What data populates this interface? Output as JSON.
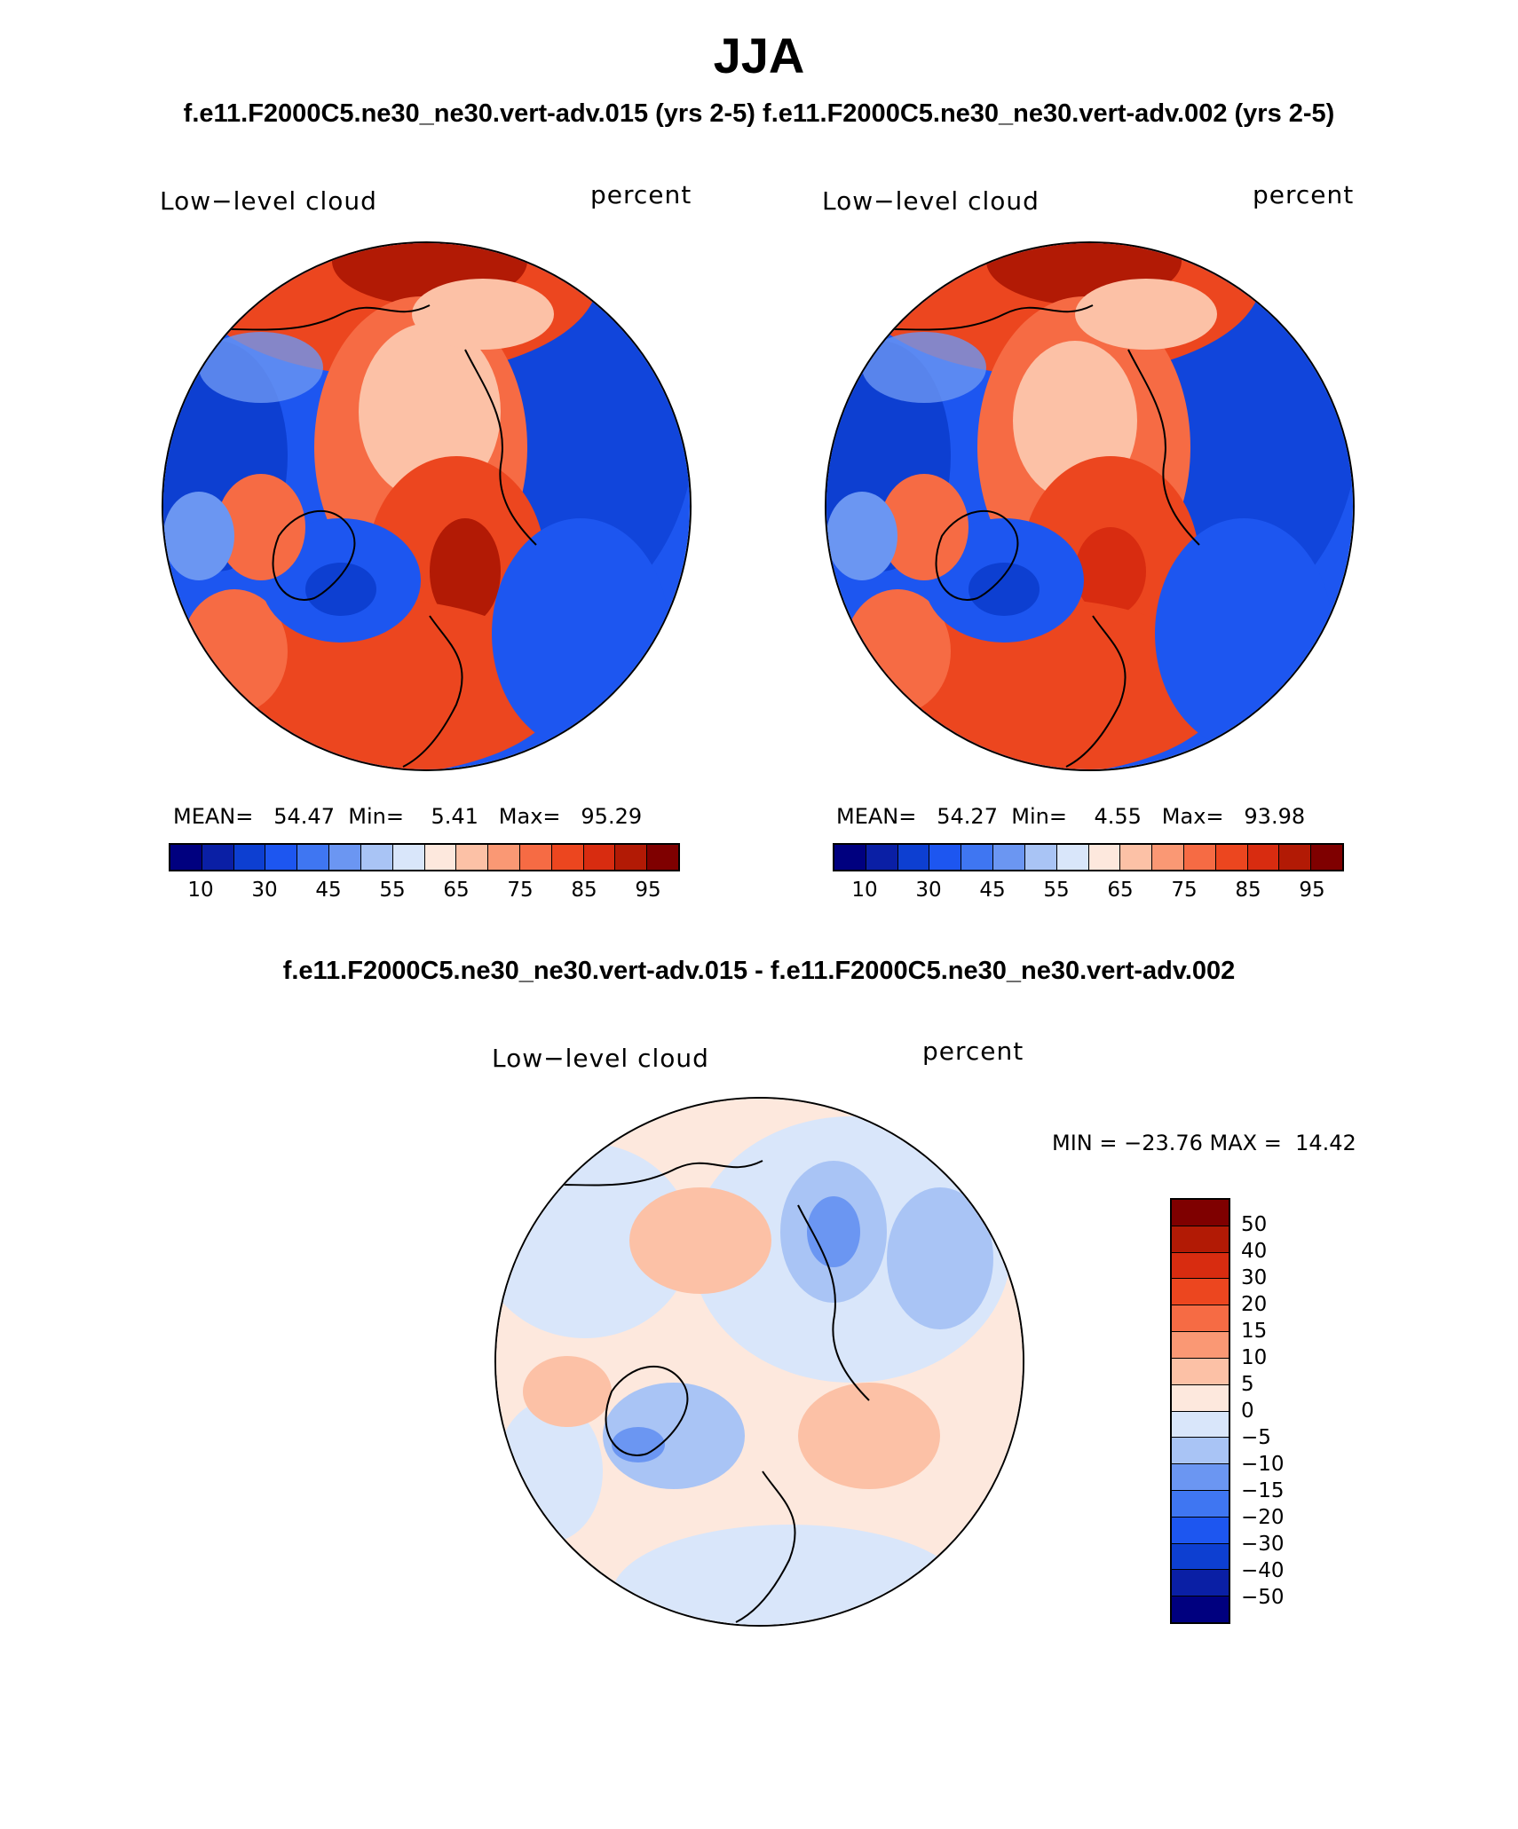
{
  "figure": {
    "season": "JJA",
    "subtitle_left": "f.e11.F2000C5.ne30_ne30.vert-adv.015 (yrs 2-5)",
    "subtitle_right": "f.e11.F2000C5.ne30_ne30.vert-adv.002 (yrs 2-5)",
    "diff_title": "f.e11.F2000C5.ne30_ne30.vert-adv.015 - f.e11.F2000C5.ne30_ne30.vert-adv.002"
  },
  "panels": [
    {
      "variable": "Low−level cloud",
      "units": "percent",
      "mean_label": "MEAN=",
      "mean": "54.47",
      "min_label": "Min=",
      "min": "5.41",
      "max_label": "Max=",
      "max": "95.29"
    },
    {
      "variable": "Low−level cloud",
      "units": "percent",
      "mean_label": "MEAN=",
      "mean": "54.27",
      "min_label": "Min=",
      "min": "4.55",
      "max_label": "Max=",
      "max": "93.98"
    }
  ],
  "diff_panel": {
    "variable": "Low−level cloud",
    "units": "percent",
    "minmax_text": "MIN = −23.76 MAX =  14.42"
  },
  "colorbar_main": {
    "colors": [
      "#00007f",
      "#0a1fa5",
      "#0d3fd1",
      "#1d56f0",
      "#3f76f2",
      "#6b96f2",
      "#a9c4f5",
      "#d9e6fa",
      "#fde8dd",
      "#fcc1a6",
      "#fa9874",
      "#f66b44",
      "#ec461f",
      "#d82c10",
      "#b21a05",
      "#7f0000"
    ],
    "ticks": [
      "10",
      "30",
      "45",
      "55",
      "65",
      "75",
      "85",
      "95"
    ]
  },
  "colorbar_diff": {
    "colors": [
      "#7f0000",
      "#b21a05",
      "#d82c10",
      "#ec461f",
      "#f66b44",
      "#fa9874",
      "#fcc1a6",
      "#fde8dd",
      "#d9e6fa",
      "#a9c4f5",
      "#6b96f2",
      "#3f76f2",
      "#1d56f0",
      "#0d3fd1",
      "#0a1fa5",
      "#00007f"
    ],
    "ticks": [
      "50",
      "40",
      "30",
      "20",
      "15",
      "10",
      "5",
      "0",
      "−5",
      "−10",
      "−15",
      "−20",
      "−30",
      "−40",
      "−50"
    ]
  }
}
